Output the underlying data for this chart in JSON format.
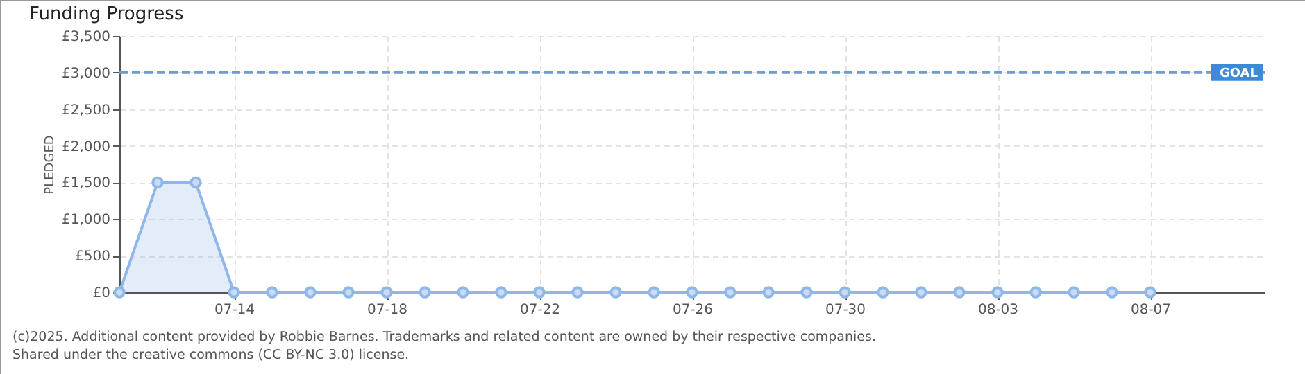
{
  "chart_data": {
    "type": "area",
    "title": "Funding Progress",
    "ylabel": "PLEDGED",
    "x": [
      "2025-07-11",
      "2025-07-12",
      "2025-07-13",
      "2025-07-14",
      "2025-07-15",
      "2025-07-16",
      "2025-07-17",
      "2025-07-18",
      "2025-07-19",
      "2025-07-20",
      "2025-07-21",
      "2025-07-22",
      "2025-07-23",
      "2025-07-24",
      "2025-07-25",
      "2025-07-26",
      "2025-07-27",
      "2025-07-28",
      "2025-07-29",
      "2025-07-30",
      "2025-07-31",
      "2025-08-01",
      "2025-08-02",
      "2025-08-03",
      "2025-08-04",
      "2025-08-05",
      "2025-08-06",
      "2025-08-07"
    ],
    "series": [
      {
        "color": "#8fb8e8",
        "values": [
          0,
          1500,
          1500,
          0,
          0,
          0,
          0,
          0,
          0,
          0,
          0,
          0,
          0,
          0,
          0,
          0,
          0,
          0,
          0,
          0,
          0,
          0,
          0,
          0,
          0,
          0,
          0,
          0
        ]
      }
    ],
    "xlim": [
      "2025-07-11",
      "2025-08-10"
    ],
    "xticks": [
      {
        "value": "2025-07-14",
        "label": "07-14"
      },
      {
        "value": "2025-07-18",
        "label": "07-18"
      },
      {
        "value": "2025-07-22",
        "label": "07-22"
      },
      {
        "value": "2025-07-26",
        "label": "07-26"
      },
      {
        "value": "2025-07-30",
        "label": "07-30"
      },
      {
        "value": "2025-08-03",
        "label": "08-03"
      },
      {
        "value": "2025-08-07",
        "label": "08-07"
      }
    ],
    "ylim": [
      0,
      3500
    ],
    "yticks": [
      {
        "value": 0,
        "label": "£0"
      },
      {
        "value": 500,
        "label": "£500"
      },
      {
        "value": 1000,
        "label": "£1,000"
      },
      {
        "value": 1500,
        "label": "£1,500"
      },
      {
        "value": 2000,
        "label": "£2,000"
      },
      {
        "value": 2500,
        "label": "£2,500"
      },
      {
        "value": 3000,
        "label": "£3,000"
      },
      {
        "value": 3500,
        "label": "£3,500"
      }
    ],
    "ref_lines": [
      {
        "axis": "y",
        "value": 3000,
        "label": "GOAL",
        "color": "#6f9bd1",
        "line_style": "dashed"
      }
    ],
    "grid": true,
    "marker": "circle",
    "line_style": "solid",
    "annotations": [
      "(c)2025. Additional content provided by Robbie Barnes. Trademarks and related content are owned by their respective companies.",
      "Shared under the creative commons (CC BY-NC 3.0) license."
    ]
  }
}
